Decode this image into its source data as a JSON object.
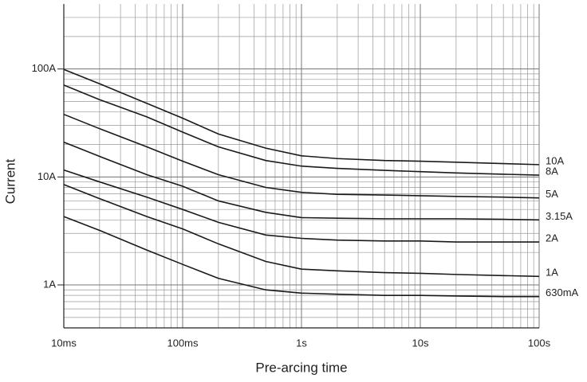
{
  "chart_data": {
    "type": "line",
    "x_label": "Pre-arcing time",
    "y_label": "Current",
    "log_x": true,
    "log_y": true,
    "grid": true,
    "minor_grid": true,
    "xlim": [
      0.01,
      100
    ],
    "ylim": [
      0.4,
      400
    ],
    "xticks": [
      {
        "value": 0.01,
        "label": "10ms"
      },
      {
        "value": 0.1,
        "label": "100ms"
      },
      {
        "value": 1,
        "label": "1s"
      },
      {
        "value": 10,
        "label": "10s"
      },
      {
        "value": 100,
        "label": "100s"
      }
    ],
    "yticks": [
      {
        "value": 1,
        "label": "1A"
      },
      {
        "value": 10,
        "label": "10A"
      },
      {
        "value": 100,
        "label": "100A"
      }
    ],
    "x": [
      0.01,
      0.02,
      0.05,
      0.1,
      0.2,
      0.5,
      1,
      2,
      5,
      10,
      20,
      50,
      100
    ],
    "series": [
      {
        "name": "10A",
        "color": "#1a1a1a",
        "values": [
          99,
          73,
          48,
          35,
          25,
          18.5,
          15.7,
          14.8,
          14.2,
          14,
          13.7,
          13.3,
          13
        ]
      },
      {
        "name": "8A",
        "color": "#1a1a1a",
        "values": [
          71,
          52,
          36,
          26,
          19,
          14.2,
          12.6,
          12,
          11.5,
          11.2,
          10.9,
          10.6,
          10.4
        ]
      },
      {
        "name": "5A",
        "color": "#1a1a1a",
        "values": [
          38,
          28,
          19,
          14,
          10.5,
          8,
          7.2,
          6.9,
          6.8,
          6.7,
          6.6,
          6.5,
          6.4
        ]
      },
      {
        "name": "3.15A",
        "color": "#1a1a1a",
        "values": [
          21,
          15.5,
          10.5,
          8.2,
          6,
          4.7,
          4.2,
          4.15,
          4.1,
          4.1,
          4.1,
          4.05,
          4.0
        ]
      },
      {
        "name": "2A",
        "color": "#1a1a1a",
        "values": [
          11.6,
          9,
          6.5,
          5,
          3.8,
          2.9,
          2.7,
          2.6,
          2.55,
          2.55,
          2.5,
          2.5,
          2.5
        ]
      },
      {
        "name": "1A",
        "color": "#1a1a1a",
        "values": [
          8.5,
          6.3,
          4.3,
          3.3,
          2.4,
          1.65,
          1.4,
          1.35,
          1.3,
          1.28,
          1.25,
          1.22,
          1.2
        ]
      },
      {
        "name": "630mA",
        "color": "#1a1a1a",
        "values": [
          4.3,
          3.2,
          2.1,
          1.55,
          1.15,
          0.9,
          0.84,
          0.82,
          0.8,
          0.8,
          0.79,
          0.78,
          0.78
        ]
      }
    ]
  }
}
